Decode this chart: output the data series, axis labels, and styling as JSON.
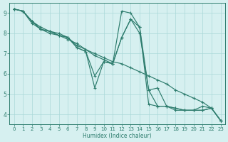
{
  "xlabel": "Humidex (Indice chaleur)",
  "bg_color": "#d6f0f0",
  "grid_color": "#aad8d8",
  "line_color": "#2e7d6e",
  "xlim": [
    -0.5,
    23.5
  ],
  "ylim": [
    3.5,
    9.5
  ],
  "xticks": [
    0,
    1,
    2,
    3,
    4,
    5,
    6,
    7,
    8,
    9,
    10,
    11,
    12,
    13,
    14,
    15,
    16,
    17,
    18,
    19,
    20,
    21,
    22,
    23
  ],
  "yticks": [
    4,
    5,
    6,
    7,
    8,
    9
  ],
  "line1_x": [
    0,
    1,
    2,
    3,
    4,
    5,
    6,
    7,
    8,
    9,
    10,
    11,
    12,
    13,
    14,
    15,
    16,
    17,
    18,
    19,
    20,
    21,
    22,
    23
  ],
  "line1_y": [
    9.2,
    9.1,
    8.6,
    8.3,
    8.1,
    8.0,
    7.8,
    7.4,
    7.2,
    7.0,
    6.8,
    6.6,
    6.5,
    6.3,
    6.1,
    5.9,
    5.7,
    5.5,
    5.2,
    5.0,
    4.8,
    4.6,
    4.3,
    3.7
  ],
  "line2_x": [
    0,
    1,
    2,
    3,
    4,
    5,
    6,
    7,
    8,
    9,
    10,
    11,
    12,
    13,
    14,
    15,
    16,
    17,
    18,
    19,
    20,
    21,
    22,
    23
  ],
  "line2_y": [
    9.2,
    9.1,
    8.6,
    8.2,
    8.1,
    7.9,
    7.8,
    7.3,
    7.1,
    5.3,
    6.6,
    6.5,
    9.1,
    9.0,
    8.3,
    4.5,
    4.4,
    4.4,
    4.3,
    4.2,
    4.2,
    4.4,
    4.3,
    3.7
  ],
  "line3_x": [
    0,
    1,
    2,
    3,
    4,
    5,
    6,
    7,
    8,
    9,
    10,
    11,
    12,
    13,
    14,
    15,
    16,
    17,
    18,
    19,
    20,
    21,
    22,
    23
  ],
  "line3_y": [
    9.2,
    9.1,
    8.5,
    8.2,
    8.0,
    7.9,
    7.7,
    7.5,
    7.2,
    6.9,
    6.7,
    6.5,
    7.8,
    8.7,
    8.3,
    5.2,
    4.4,
    4.4,
    4.2,
    4.2,
    4.2,
    4.2,
    4.3,
    3.7
  ],
  "line4_x": [
    0,
    1,
    2,
    3,
    4,
    5,
    6,
    7,
    8,
    9,
    10,
    11,
    12,
    13,
    14,
    15,
    16,
    17,
    18,
    19,
    20,
    21,
    22,
    23
  ],
  "line4_y": [
    9.2,
    9.1,
    8.6,
    8.2,
    8.1,
    7.9,
    7.8,
    7.3,
    7.1,
    5.9,
    6.6,
    6.5,
    7.8,
    8.7,
    8.0,
    5.2,
    5.3,
    4.4,
    4.3,
    4.2,
    4.2,
    4.2,
    4.3,
    3.7
  ]
}
